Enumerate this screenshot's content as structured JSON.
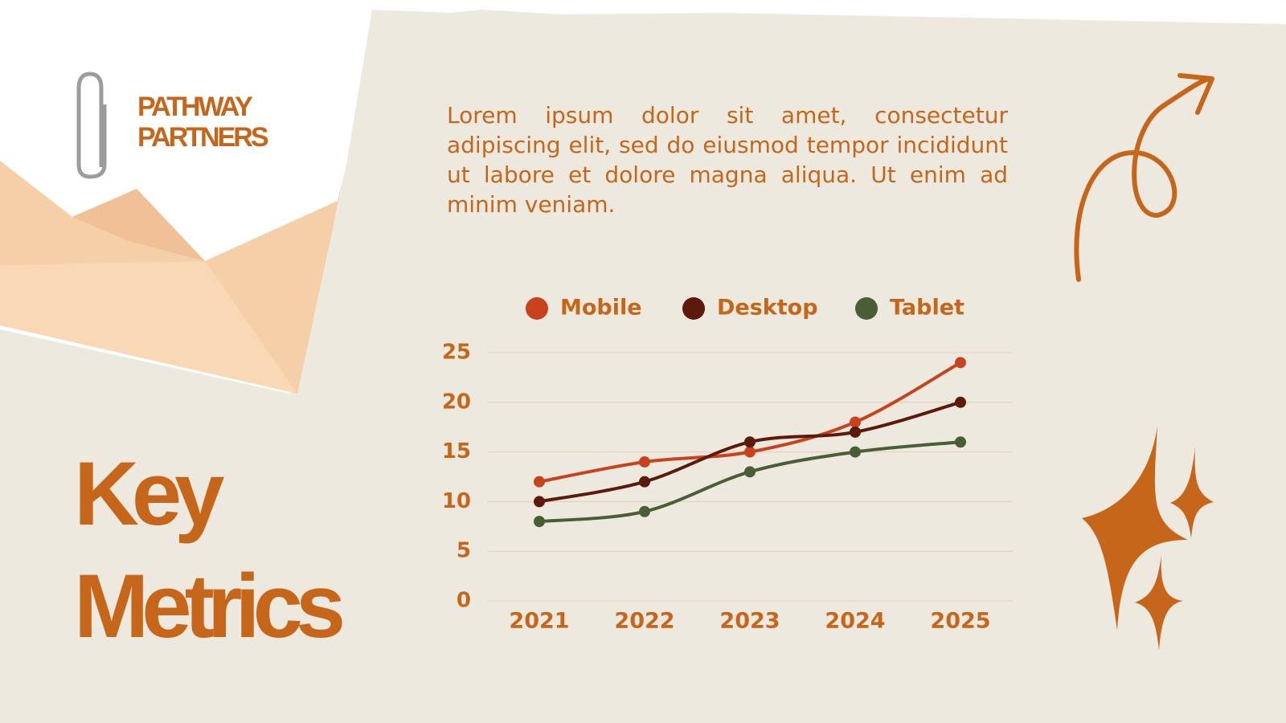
{
  "brand": "PATHWAY PARTNERS",
  "heading": "Key Metrics",
  "body": "Lorem ipsum dolor sit amet, consectetur adipiscing elit, sed do eiusmod tempor incididunt ut labore et dolore magna aliqua. Ut enim ad minim veniam.",
  "chart_data": {
    "type": "line",
    "categories": [
      "2021",
      "2022",
      "2023",
      "2024",
      "2025"
    ],
    "series": [
      {
        "name": "Mobile",
        "color": "#c8421e",
        "values": [
          12,
          14,
          15,
          18,
          24
        ]
      },
      {
        "name": "Desktop",
        "color": "#5c1a0b",
        "values": [
          10,
          12,
          16,
          17,
          20
        ]
      },
      {
        "name": "Tablet",
        "color": "#4a5e35",
        "values": [
          8,
          9,
          13,
          15,
          16
        ]
      }
    ],
    "ylim": [
      0,
      25
    ],
    "yticks": [
      0,
      5,
      10,
      15,
      20,
      25
    ],
    "grid": true,
    "legend": "top"
  }
}
